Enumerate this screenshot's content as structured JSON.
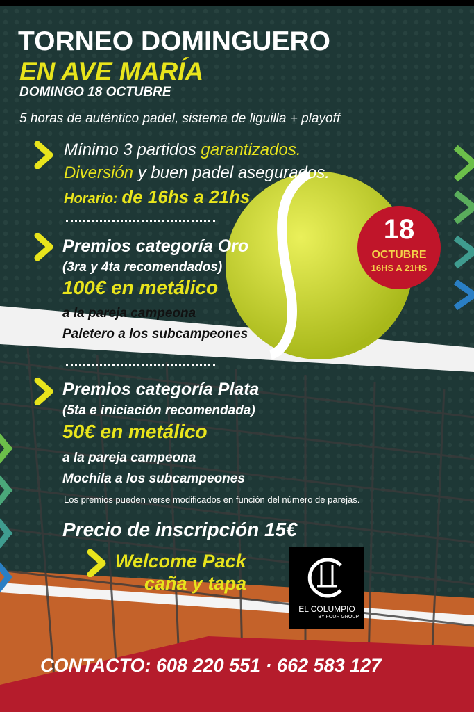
{
  "header": {
    "title": "TORNEO DOMINGUERO",
    "location": "EN AVE MARÍA",
    "date": "DOMINGO 18 OCTUBRE",
    "subtitle": "5 horas de auténtico padel, sistema de liguilla + playoff"
  },
  "intro": {
    "line1_a": "Mínimo 3 partidos ",
    "line1_b": "garantizados.",
    "line2_a": "Diversión",
    "line2_b": " y buen padel asegurados.",
    "schedule_label": "Horario: ",
    "schedule_value": "de 16hs a 21hs"
  },
  "badge": {
    "day": "18",
    "month": "OCTUBRE",
    "hours": "16HS A 21HS",
    "color": "#c0152a"
  },
  "oro": {
    "title": "Premios  categoría Oro",
    "note": "(3ra y 4ta recomendados)",
    "prize": "100€ en metálico",
    "winner": "a la pareja campeona",
    "runner_up": "Paletero a los subcampeones"
  },
  "plata": {
    "title": "Premios categoría Plata",
    "note": "(5ta e iniciación recomendada)",
    "prize": "50€ en metálico",
    "winner": "a la pareja campeona",
    "runner_up": "Mochila a los subcampeones"
  },
  "disclaimer": "Los premios pueden verse modificados en función del número de parejas.",
  "price": "Precio de inscripción 15€",
  "welcome": {
    "line1": "Welcome Pack",
    "line2": "caña y tapa"
  },
  "sponsor": {
    "name": "EL COLUMPIO",
    "sub": "BY FOUR GROUP"
  },
  "contact": "CONTACTO: 608 220 551 · 662 583 127",
  "colors": {
    "background": "#1e3836",
    "accent_yellow": "#e8e41c",
    "court_orange": "#c4622a",
    "footer_red": "#b51c2c"
  }
}
